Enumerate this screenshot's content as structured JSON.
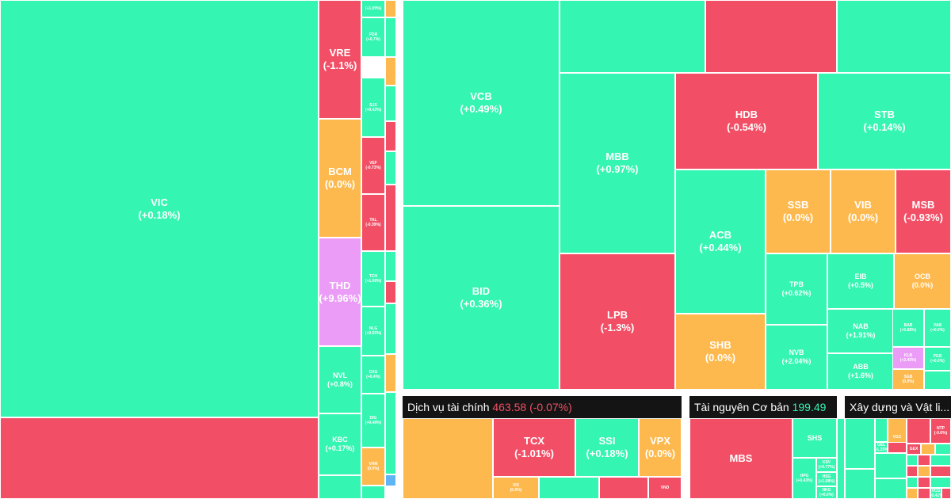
{
  "colors": {
    "up": "#35f5b2",
    "down": "#f24f66",
    "unchanged": "#fdb94d",
    "ceiling": "#ea9cf6",
    "floor": "#5fb4f5",
    "header_bg": "#141414"
  },
  "sectors": [
    {
      "name": "Dịch vụ tài chính",
      "index": "463.58",
      "change": "(-0.07%)",
      "trend": "down"
    },
    {
      "name": "Tài nguyên Cơ bản",
      "index": "199.49",
      "change": "",
      "trend": "up"
    },
    {
      "name": "Xây dựng và Vật li...",
      "index": "",
      "change": "",
      "trend": "up"
    }
  ],
  "tiles": [
    {
      "symbol": "VIC",
      "change": "(+0.18%)",
      "trend": "up"
    },
    {
      "symbol": "",
      "change": "",
      "trend": "down"
    },
    {
      "symbol": "VRE",
      "change": "(-1.1%)",
      "trend": "down"
    },
    {
      "symbol": "BCM",
      "change": "(0.0%)",
      "trend": "unchanged"
    },
    {
      "symbol": "THD",
      "change": "(+9.96%)",
      "trend": "ceiling"
    },
    {
      "symbol": "NVL",
      "change": "(+0.8%)",
      "trend": "up"
    },
    {
      "symbol": "KBC",
      "change": "(+0.17%)",
      "trend": "up"
    },
    {
      "symbol": "",
      "change": "",
      "trend": "up"
    },
    {
      "symbol": "",
      "change": "(+1.09%)",
      "trend": "up"
    },
    {
      "symbol": "PDR",
      "change": "(+0.7%)",
      "trend": "up"
    },
    {
      "symbol": "SJS",
      "change": "(+0.42%)",
      "trend": "up"
    },
    {
      "symbol": "VEF",
      "change": "(-0.73%)",
      "trend": "down"
    },
    {
      "symbol": "TAL",
      "change": "(-0.39%)",
      "trend": "down"
    },
    {
      "symbol": "TCH",
      "change": "(+1.08%)",
      "trend": "up"
    },
    {
      "symbol": "NLG",
      "change": "(+0.55%)",
      "trend": "up"
    },
    {
      "symbol": "DXG",
      "change": "(+0.4%)",
      "trend": "up"
    },
    {
      "symbol": "DIG",
      "change": "(+0.48%)",
      "trend": "up"
    },
    {
      "symbol": "VHM",
      "change": "(0.0%)",
      "trend": "unchanged"
    },
    {
      "symbol": "",
      "change": "",
      "trend": "up"
    },
    {
      "symbol": "",
      "change": "",
      "trend": "unchanged"
    },
    {
      "symbol": "",
      "change": "",
      "trend": "up"
    },
    {
      "symbol": "",
      "change": "",
      "trend": "unchanged"
    },
    {
      "symbol": "",
      "change": "",
      "trend": "up"
    },
    {
      "symbol": "",
      "change": "",
      "trend": "down"
    },
    {
      "symbol": "",
      "change": "",
      "trend": "up"
    },
    {
      "symbol": "",
      "change": "",
      "trend": "down"
    },
    {
      "symbol": "",
      "change": "",
      "trend": "up"
    },
    {
      "symbol": "",
      "change": "",
      "trend": "down"
    },
    {
      "symbol": "",
      "change": "",
      "trend": "up"
    },
    {
      "symbol": "",
      "change": "",
      "trend": "unchanged"
    },
    {
      "symbol": "",
      "change": "",
      "trend": "up"
    },
    {
      "symbol": "",
      "change": "",
      "trend": "floor"
    },
    {
      "symbol": "VCB",
      "change": "(+0.49%)",
      "trend": "up"
    },
    {
      "symbol": "BID",
      "change": "(+0.36%)",
      "trend": "up"
    },
    {
      "symbol": "",
      "change": "",
      "trend": "up"
    },
    {
      "symbol": "",
      "change": "",
      "trend": "down"
    },
    {
      "symbol": "",
      "change": "",
      "trend": "up"
    },
    {
      "symbol": "MBB",
      "change": "(+0.97%)",
      "trend": "up"
    },
    {
      "symbol": "LPB",
      "change": "(-1.3%)",
      "trend": "down"
    },
    {
      "symbol": "HDB",
      "change": "(-0.54%)",
      "trend": "down"
    },
    {
      "symbol": "STB",
      "change": "(+0.14%)",
      "trend": "up"
    },
    {
      "symbol": "ACB",
      "change": "(+0.44%)",
      "trend": "up"
    },
    {
      "symbol": "SHB",
      "change": "(0.0%)",
      "trend": "unchanged"
    },
    {
      "symbol": "SSB",
      "change": "(0.0%)",
      "trend": "unchanged"
    },
    {
      "symbol": "VIB",
      "change": "(0.0%)",
      "trend": "unchanged"
    },
    {
      "symbol": "MSB",
      "change": "(-0.93%)",
      "trend": "down"
    },
    {
      "symbol": "TPB",
      "change": "(+0.62%)",
      "trend": "up"
    },
    {
      "symbol": "EIB",
      "change": "(+0.5%)",
      "trend": "up"
    },
    {
      "symbol": "OCB",
      "change": "(0.0%)",
      "trend": "unchanged"
    },
    {
      "symbol": "NVB",
      "change": "(+2.04%)",
      "trend": "up"
    },
    {
      "symbol": "NAB",
      "change": "(+1.91%)",
      "trend": "up"
    },
    {
      "symbol": "ABB",
      "change": "(+1.6%)",
      "trend": "up"
    },
    {
      "symbol": "BAB",
      "change": "(+0.88%)",
      "trend": "up"
    },
    {
      "symbol": "VAB",
      "change": "(+0.0%)",
      "trend": "up"
    },
    {
      "symbol": "PGB",
      "change": "(+0.0%)",
      "trend": "up"
    },
    {
      "symbol": "KLB",
      "change": "(+2.45%)",
      "trend": "ceiling"
    },
    {
      "symbol": "SGB",
      "change": "(0.0%)",
      "trend": "unchanged"
    },
    {
      "symbol": "",
      "change": "",
      "trend": "up"
    },
    {
      "symbol": "",
      "change": "",
      "trend": "unchanged"
    },
    {
      "symbol": "TCX",
      "change": "(-1.01%)",
      "trend": "down"
    },
    {
      "symbol": "SSI",
      "change": "(+0.18%)",
      "trend": "up"
    },
    {
      "symbol": "VPX",
      "change": "(0.0%)",
      "trend": "unchanged"
    },
    {
      "symbol": "VIX",
      "change": "(0.0%)",
      "trend": "unchanged"
    },
    {
      "symbol": "",
      "change": "",
      "trend": "up"
    },
    {
      "symbol": "",
      "change": "",
      "trend": "down"
    },
    {
      "symbol": "VND",
      "change": "",
      "trend": "down"
    },
    {
      "symbol": "MBS",
      "change": "",
      "trend": "down"
    },
    {
      "symbol": "SHS",
      "change": "",
      "trend": "up"
    },
    {
      "symbol": "HPG",
      "change": "(+0.43%)",
      "trend": "up"
    },
    {
      "symbol": "KSV",
      "change": "(+0.77%)",
      "trend": "up"
    },
    {
      "symbol": "HSG",
      "change": "(+1.08%)",
      "trend": "up"
    },
    {
      "symbol": "NKG",
      "change": "(+0.0%)",
      "trend": "up"
    },
    {
      "symbol": "",
      "change": "",
      "trend": "up"
    },
    {
      "symbol": "",
      "change": "",
      "trend": "up"
    },
    {
      "symbol": "",
      "change": "",
      "trend": "up"
    },
    {
      "symbol": "",
      "change": "",
      "trend": "up"
    },
    {
      "symbol": "GEL",
      "change": "(+1.35%)",
      "trend": "up"
    },
    {
      "symbol": "VGC",
      "change": "",
      "trend": "unchanged"
    },
    {
      "symbol": "",
      "change": "",
      "trend": "up"
    },
    {
      "symbol": "",
      "change": "",
      "trend": "down"
    },
    {
      "symbol": "NTP",
      "change": "(-0.6%)",
      "trend": "down"
    },
    {
      "symbol": "GEX",
      "change": "",
      "trend": "down"
    },
    {
      "symbol": "",
      "change": "",
      "trend": "unchanged"
    },
    {
      "symbol": "",
      "change": "",
      "trend": "up"
    },
    {
      "symbol": "",
      "change": "",
      "trend": "up"
    },
    {
      "symbol": "",
      "change": "",
      "trend": "down"
    },
    {
      "symbol": "",
      "change": "",
      "trend": "up"
    },
    {
      "symbol": "",
      "change": "",
      "trend": "down"
    },
    {
      "symbol": "",
      "change": "",
      "trend": "unchanged"
    },
    {
      "symbol": "",
      "change": "",
      "trend": "down"
    },
    {
      "symbol": "",
      "change": "",
      "trend": "up"
    },
    {
      "symbol": "",
      "change": "",
      "trend": "up"
    },
    {
      "symbol": "",
      "change": "",
      "trend": "down"
    },
    {
      "symbol": "",
      "change": "",
      "trend": "up"
    },
    {
      "symbol": "",
      "change": "",
      "trend": "unchanged"
    },
    {
      "symbol": "",
      "change": "",
      "trend": "down"
    },
    {
      "symbol": "VCG",
      "change": "(+0.41%)",
      "trend": "up"
    },
    {
      "symbol": "",
      "change": "",
      "trend": "down"
    },
    {
      "symbol": "",
      "change": "",
      "trend": "down"
    },
    {
      "symbol": "",
      "change": "",
      "trend": "up"
    },
    {
      "symbol": "",
      "change": "",
      "trend": "down"
    },
    {
      "symbol": "",
      "change": "",
      "trend": "up"
    },
    {
      "symbol": "",
      "change": "",
      "trend": "unchanged"
    },
    {
      "symbol": "",
      "change": "",
      "trend": "down"
    },
    {
      "symbol": "",
      "change": "",
      "trend": "up"
    }
  ]
}
